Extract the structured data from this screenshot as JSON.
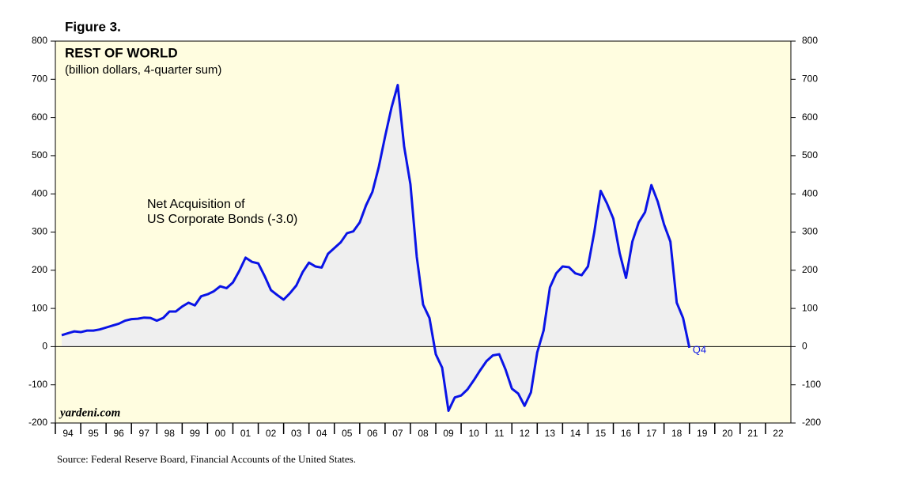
{
  "chart_data": {
    "type": "area",
    "figure_label": "Figure 3.",
    "title": "REST OF WORLD",
    "subtitle": "(billion dollars, 4-quarter sum)",
    "annotations": [
      "Net Acquisition of",
      "US Corporate Bonds (-3.0)",
      "Q4",
      "yardeni.com"
    ],
    "source": "Source: Federal Reserve Board, Financial Accounts of the United States.",
    "x": [
      1994.25,
      1994.5,
      1994.75,
      1995,
      1995.25,
      1995.5,
      1995.75,
      1996,
      1996.25,
      1996.5,
      1996.75,
      1997,
      1997.25,
      1997.5,
      1997.75,
      1998,
      1998.25,
      1998.5,
      1998.75,
      1999,
      1999.25,
      1999.5,
      1999.75,
      2000,
      2000.25,
      2000.5,
      2000.75,
      2001,
      2001.25,
      2001.5,
      2001.75,
      2002,
      2002.25,
      2002.5,
      2002.75,
      2003,
      2003.25,
      2003.5,
      2003.75,
      2004,
      2004.25,
      2004.5,
      2004.75,
      2005,
      2005.25,
      2005.5,
      2005.75,
      2006,
      2006.25,
      2006.5,
      2006.75,
      2007,
      2007.25,
      2007.5,
      2007.75,
      2008,
      2008.25,
      2008.5,
      2008.75,
      2009,
      2009.25,
      2009.5,
      2009.75,
      2010,
      2010.25,
      2010.5,
      2010.75,
      2011,
      2011.25,
      2011.5,
      2011.75,
      2012,
      2012.25,
      2012.5,
      2012.75,
      2013,
      2013.25,
      2013.5,
      2013.75,
      2014,
      2014.25,
      2014.5,
      2014.75,
      2015,
      2015.25,
      2015.5,
      2015.75,
      2016,
      2016.25,
      2016.5,
      2016.75,
      2017,
      2017.25,
      2017.5,
      2017.75,
      2018,
      2018.25,
      2018.5,
      2018.75,
      2019
    ],
    "series": [
      {
        "name": "Net Acquisition of US Corporate Bonds",
        "color": "#0a14e6",
        "fill": "#efefef",
        "values": [
          30,
          35,
          40,
          38,
          42,
          42,
          45,
          50,
          55,
          60,
          68,
          72,
          73,
          76,
          75,
          68,
          75,
          92,
          92,
          105,
          115,
          108,
          132,
          137,
          145,
          158,
          153,
          168,
          198,
          233,
          222,
          218,
          185,
          148,
          135,
          123,
          140,
          160,
          195,
          220,
          210,
          207,
          243,
          258,
          273,
          297,
          302,
          325,
          370,
          405,
          470,
          550,
          625,
          685,
          525,
          425,
          235,
          110,
          75,
          -20,
          -55,
          -168,
          -133,
          -128,
          -112,
          -88,
          -62,
          -38,
          -23,
          -20,
          -60,
          -110,
          -123,
          -155,
          -120,
          -15,
          42,
          155,
          192,
          210,
          208,
          192,
          187,
          210,
          300,
          408,
          375,
          335,
          245,
          180,
          275,
          325,
          352,
          423,
          380,
          320,
          275,
          115,
          75,
          -3
        ]
      }
    ],
    "xlim": [
      1994,
      2023
    ],
    "xticks": [
      {
        "value": 1994,
        "label": "94"
      },
      {
        "value": 1995,
        "label": "95"
      },
      {
        "value": 1996,
        "label": "96"
      },
      {
        "value": 1997,
        "label": "97"
      },
      {
        "value": 1998,
        "label": "98"
      },
      {
        "value": 1999,
        "label": "99"
      },
      {
        "value": 2000,
        "label": "00"
      },
      {
        "value": 2001,
        "label": "01"
      },
      {
        "value": 2002,
        "label": "02"
      },
      {
        "value": 2003,
        "label": "03"
      },
      {
        "value": 2004,
        "label": "04"
      },
      {
        "value": 2005,
        "label": "05"
      },
      {
        "value": 2006,
        "label": "06"
      },
      {
        "value": 2007,
        "label": "07"
      },
      {
        "value": 2008,
        "label": "08"
      },
      {
        "value": 2009,
        "label": "09"
      },
      {
        "value": 2010,
        "label": "10"
      },
      {
        "value": 2011,
        "label": "11"
      },
      {
        "value": 2012,
        "label": "12"
      },
      {
        "value": 2013,
        "label": "13"
      },
      {
        "value": 2014,
        "label": "14"
      },
      {
        "value": 2015,
        "label": "15"
      },
      {
        "value": 2016,
        "label": "16"
      },
      {
        "value": 2017,
        "label": "17"
      },
      {
        "value": 2018,
        "label": "18"
      },
      {
        "value": 2019,
        "label": "19"
      },
      {
        "value": 2020,
        "label": "20"
      },
      {
        "value": 2021,
        "label": "21"
      },
      {
        "value": 2022,
        "label": "22"
      }
    ],
    "ylim": [
      -200,
      800
    ],
    "yticks": [
      -200,
      -100,
      0,
      100,
      200,
      300,
      400,
      500,
      600,
      700,
      800
    ],
    "background": "#fffde0"
  }
}
